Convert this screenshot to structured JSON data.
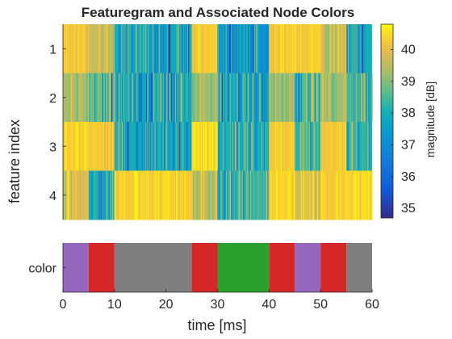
{
  "chart_data": {
    "type": "heatmap",
    "title": "Featuregram and Associated Node Colors",
    "xlabel": "time [ms]",
    "ylabel": "feature index",
    "xlim": [
      0,
      60
    ],
    "x_ticks": [
      "0",
      "10",
      "20",
      "30",
      "40",
      "50",
      "60"
    ],
    "y_ticks": [
      "1",
      "2",
      "3",
      "4"
    ],
    "colorbar": {
      "label": "magnitude [dB]",
      "clim": [
        34.7,
        40.8
      ],
      "ticks": [
        "35",
        "36",
        "37",
        "38",
        "39",
        "40"
      ],
      "colormap": "parula"
    },
    "features": [
      {
        "index": "1",
        "segments": [
          {
            "start": 0,
            "end": 5,
            "level": 40.2
          },
          {
            "start": 5,
            "end": 10,
            "level": 39.6
          },
          {
            "start": 10,
            "end": 25,
            "level": 37.8
          },
          {
            "start": 25,
            "end": 30,
            "level": 40.3
          },
          {
            "start": 30,
            "end": 40,
            "level": 37.3
          },
          {
            "start": 40,
            "end": 45,
            "level": 40.2
          },
          {
            "start": 45,
            "end": 50,
            "level": 40.3
          },
          {
            "start": 50,
            "end": 55,
            "level": 39.8
          },
          {
            "start": 55,
            "end": 60,
            "level": 38.0
          }
        ]
      },
      {
        "index": "2",
        "segments": [
          {
            "start": 0,
            "end": 5,
            "level": 39.3
          },
          {
            "start": 5,
            "end": 10,
            "level": 38.9
          },
          {
            "start": 10,
            "end": 25,
            "level": 38.0
          },
          {
            "start": 25,
            "end": 30,
            "level": 39.2
          },
          {
            "start": 30,
            "end": 40,
            "level": 37.9
          },
          {
            "start": 40,
            "end": 45,
            "level": 39.2
          },
          {
            "start": 45,
            "end": 50,
            "level": 38.5
          },
          {
            "start": 50,
            "end": 55,
            "level": 39.4
          },
          {
            "start": 55,
            "end": 60,
            "level": 38.4
          }
        ]
      },
      {
        "index": "3",
        "segments": [
          {
            "start": 0,
            "end": 5,
            "level": 40.4
          },
          {
            "start": 5,
            "end": 10,
            "level": 40.2
          },
          {
            "start": 10,
            "end": 25,
            "level": 37.8
          },
          {
            "start": 25,
            "end": 30,
            "level": 40.5
          },
          {
            "start": 30,
            "end": 40,
            "level": 37.9
          },
          {
            "start": 40,
            "end": 45,
            "level": 40.3
          },
          {
            "start": 45,
            "end": 50,
            "level": 38.5
          },
          {
            "start": 50,
            "end": 55,
            "level": 40.3
          },
          {
            "start": 55,
            "end": 60,
            "level": 38.2
          }
        ]
      },
      {
        "index": "4",
        "segments": [
          {
            "start": 0,
            "end": 5,
            "level": 39.9
          },
          {
            "start": 5,
            "end": 10,
            "level": 37.9
          },
          {
            "start": 10,
            "end": 25,
            "level": 40.4
          },
          {
            "start": 25,
            "end": 30,
            "level": 39.6
          },
          {
            "start": 30,
            "end": 40,
            "level": 38.3
          },
          {
            "start": 40,
            "end": 45,
            "level": 40.4
          },
          {
            "start": 45,
            "end": 50,
            "level": 39.9
          },
          {
            "start": 50,
            "end": 55,
            "level": 40.3
          },
          {
            "start": 55,
            "end": 60,
            "level": 40.4
          }
        ]
      }
    ],
    "node_colors": {
      "label": "color",
      "segments": [
        {
          "start": 0,
          "end": 5,
          "color": "#9467bd"
        },
        {
          "start": 5,
          "end": 10,
          "color": "#d62728"
        },
        {
          "start": 10,
          "end": 25,
          "color": "#7f7f7f"
        },
        {
          "start": 25,
          "end": 30,
          "color": "#d62728"
        },
        {
          "start": 30,
          "end": 40,
          "color": "#2ca02c"
        },
        {
          "start": 40,
          "end": 45,
          "color": "#d62728"
        },
        {
          "start": 45,
          "end": 50,
          "color": "#9467bd"
        },
        {
          "start": 50,
          "end": 55,
          "color": "#d62728"
        },
        {
          "start": 55,
          "end": 60,
          "color": "#7f7f7f"
        }
      ]
    }
  }
}
